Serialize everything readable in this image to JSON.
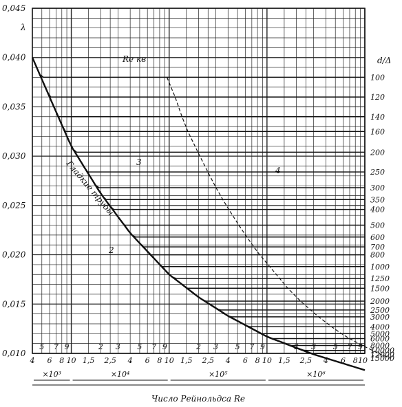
{
  "chart_data": {
    "type": "line",
    "title": "",
    "xlabel": "Число Рейнольдса Re",
    "ylabel": "λ",
    "x_scale": "log",
    "xlim": [
      4000,
      10000000
    ],
    "ylim": [
      0.01,
      0.045
    ],
    "grid": true,
    "y_ticks": [
      "0,045",
      "0,040",
      "0,035",
      "0,030",
      "0,025",
      "0,020",
      "0,015",
      "0,010"
    ],
    "x_bottom_ticks": [
      "4",
      "6",
      "8",
      "10",
      "1,5",
      "2,5",
      "4",
      "6",
      "8",
      "10",
      "1,5",
      "2,5",
      "4",
      "6",
      "8",
      "10",
      "1,5",
      "2,5",
      "4",
      "6",
      "8",
      "10"
    ],
    "x_top_ticks": [
      "5",
      "7",
      "9",
      "2",
      "3",
      "5",
      "7",
      "9",
      "2",
      "3",
      "5",
      "7",
      "9",
      "2",
      "3",
      "5",
      "7",
      "9"
    ],
    "multipliers": [
      "×10³",
      "×10⁴",
      "×10⁵",
      "×10⁶"
    ],
    "right_axis_title": "d/Δ",
    "right_axis_labels": [
      "100",
      "120",
      "140",
      "160",
      "200",
      "250",
      "300",
      "350",
      "400",
      "500",
      "600",
      "700",
      "800",
      "1000",
      "1250",
      "1500",
      "2000",
      "2500",
      "3000",
      "4000",
      "5000",
      "6000",
      "8000",
      "10000",
      "12000",
      "15000"
    ],
    "annotations": {
      "re_critical": "Re кв",
      "smooth_pipes": "Гладкие трубы",
      "zone_2": "2",
      "zone_3": "3",
      "zone_4": "4"
    },
    "series": [
      {
        "d_over_delta": 100,
        "lambda_rough": 0.038
      },
      {
        "d_over_delta": 120,
        "lambda_rough": 0.036
      },
      {
        "d_over_delta": 140,
        "lambda_rough": 0.034
      },
      {
        "d_over_delta": 160,
        "lambda_rough": 0.0325
      },
      {
        "d_over_delta": 200,
        "lambda_rough": 0.0304
      },
      {
        "d_over_delta": 250,
        "lambda_rough": 0.0284
      },
      {
        "d_over_delta": 300,
        "lambda_rough": 0.0268
      },
      {
        "d_over_delta": 350,
        "lambda_rough": 0.0256
      },
      {
        "d_over_delta": 400,
        "lambda_rough": 0.0246
      },
      {
        "d_over_delta": 500,
        "lambda_rough": 0.023
      },
      {
        "d_over_delta": 600,
        "lambda_rough": 0.0218
      },
      {
        "d_over_delta": 700,
        "lambda_rough": 0.0208
      },
      {
        "d_over_delta": 800,
        "lambda_rough": 0.02
      },
      {
        "d_over_delta": 1000,
        "lambda_rough": 0.0188
      },
      {
        "d_over_delta": 1250,
        "lambda_rough": 0.0176
      },
      {
        "d_over_delta": 1500,
        "lambda_rough": 0.0166
      },
      {
        "d_over_delta": 2000,
        "lambda_rough": 0.0153
      },
      {
        "d_over_delta": 2500,
        "lambda_rough": 0.0144
      },
      {
        "d_over_delta": 3000,
        "lambda_rough": 0.0137
      },
      {
        "d_over_delta": 4000,
        "lambda_rough": 0.0127
      },
      {
        "d_over_delta": 5000,
        "lambda_rough": 0.012
      },
      {
        "d_over_delta": 6000,
        "lambda_rough": 0.0115
      },
      {
        "d_over_delta": 8000,
        "lambda_rough": 0.0108
      },
      {
        "d_over_delta": 10000,
        "lambda_rough": 0.0103
      },
      {
        "d_over_delta": 12000,
        "lambda_rough": 0.0099
      },
      {
        "d_over_delta": 15000,
        "lambda_rough": 0.0095
      }
    ],
    "smooth_pipe_curve": {
      "x": [
        4000,
        6000,
        10000,
        20000,
        40000,
        100000,
        200000,
        400000,
        1000000,
        3000000,
        10000000
      ],
      "y": [
        0.04,
        0.036,
        0.031,
        0.0262,
        0.0222,
        0.018,
        0.0157,
        0.0138,
        0.0117,
        0.0099,
        0.0083
      ]
    },
    "colors": {
      "line": "#111111",
      "background": "#ffffff",
      "grid": "#222222"
    }
  }
}
